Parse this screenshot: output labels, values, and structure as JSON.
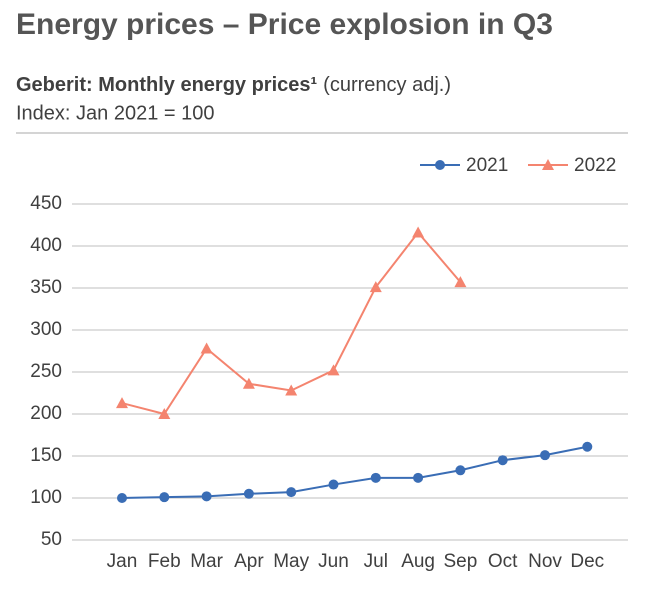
{
  "chart_data": {
    "type": "line",
    "title": "Energy prices – Price explosion in Q3",
    "subtitle_bold": "Geberit: Monthly energy prices¹",
    "subtitle_normal": "(currency adj.)",
    "subtitle_line2": "Index: Jan 2021 = 100",
    "categories": [
      "Jan",
      "Feb",
      "Mar",
      "Apr",
      "May",
      "Jun",
      "Jul",
      "Aug",
      "Sep",
      "Oct",
      "Nov",
      "Dec"
    ],
    "series": [
      {
        "name": "2021",
        "color": "#3a6db5",
        "marker": "circle",
        "values": [
          100,
          101,
          102,
          105,
          107,
          116,
          124,
          124,
          133,
          145,
          151,
          161
        ]
      },
      {
        "name": "2022",
        "color": "#f4846f",
        "marker": "triangle",
        "values": [
          213,
          200,
          278,
          236,
          228,
          252,
          351,
          416,
          357,
          null,
          null,
          null
        ]
      }
    ],
    "ylim": [
      50,
      450
    ],
    "yticks": [
      50,
      100,
      150,
      200,
      250,
      300,
      350,
      400,
      450
    ],
    "grid": true,
    "legend": "top-right"
  }
}
